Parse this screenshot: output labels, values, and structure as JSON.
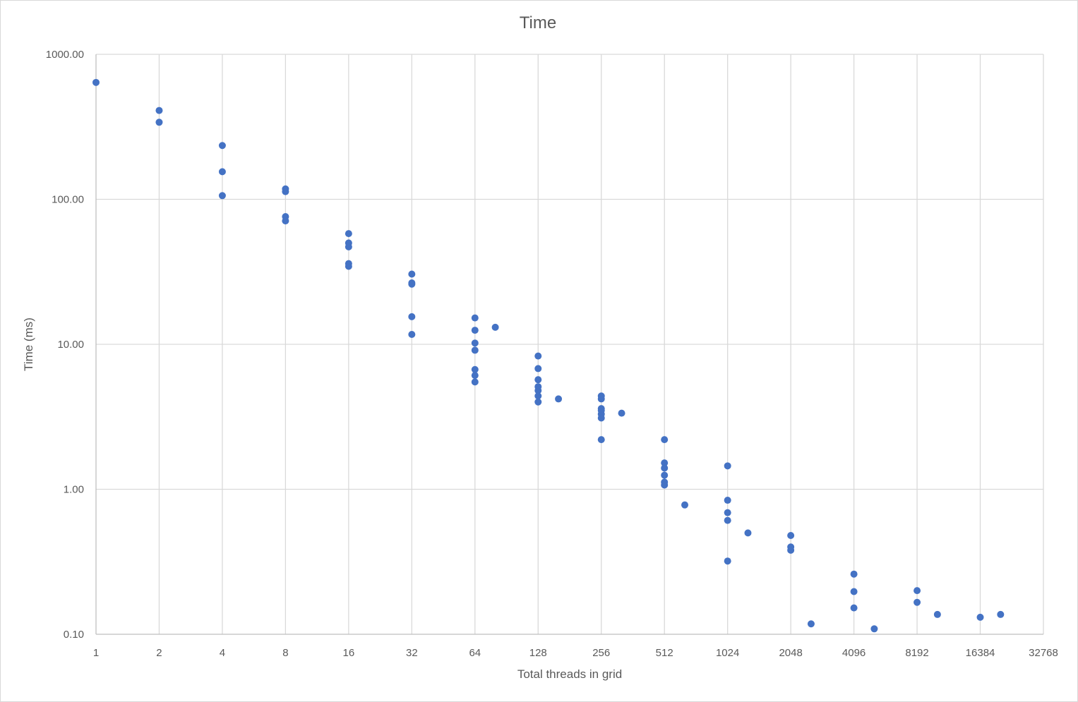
{
  "chart_data": {
    "type": "scatter",
    "title": "Time",
    "xlabel": "Total threads in grid",
    "ylabel": "Time (ms)",
    "x_scale": "log2",
    "y_scale": "log10",
    "xlim": [
      1,
      32768
    ],
    "ylim": [
      0.1,
      1000
    ],
    "grid": true,
    "x_ticks": [
      "1",
      "2",
      "4",
      "8",
      "16",
      "32",
      "64",
      "128",
      "256",
      "512",
      "1024",
      "2048",
      "4096",
      "8192",
      "16384",
      "32768"
    ],
    "y_ticks": [
      "0.10",
      "1.00",
      "10.00",
      "100.00",
      "1000.00"
    ],
    "marker_color": "#4472c4",
    "series": [
      {
        "points": [
          [
            1,
            640
          ],
          [
            2,
            410
          ],
          [
            2,
            340
          ],
          [
            4,
            235
          ],
          [
            4,
            155
          ],
          [
            4,
            106
          ],
          [
            8,
            118
          ],
          [
            8,
            113
          ],
          [
            8,
            76
          ],
          [
            8,
            71
          ],
          [
            16,
            58
          ],
          [
            16,
            50
          ],
          [
            16,
            47
          ],
          [
            16,
            36
          ],
          [
            16,
            34.5
          ],
          [
            32,
            30.5
          ],
          [
            32,
            26.5
          ],
          [
            32,
            26
          ],
          [
            32,
            15.5
          ],
          [
            32,
            11.7
          ],
          [
            64,
            15.2
          ],
          [
            64,
            12.5
          ],
          [
            64,
            10.2
          ],
          [
            64,
            9.1
          ],
          [
            64,
            6.7
          ],
          [
            64,
            6.1
          ],
          [
            64,
            5.5
          ],
          [
            80,
            13.1
          ],
          [
            128,
            8.3
          ],
          [
            128,
            6.8
          ],
          [
            128,
            5.7
          ],
          [
            128,
            5.1
          ],
          [
            128,
            4.8
          ],
          [
            128,
            4.4
          ],
          [
            128,
            4.0
          ],
          [
            160,
            4.2
          ],
          [
            256,
            4.4
          ],
          [
            256,
            4.2
          ],
          [
            256,
            3.6
          ],
          [
            256,
            3.5
          ],
          [
            256,
            3.3
          ],
          [
            256,
            3.1
          ],
          [
            256,
            2.2
          ],
          [
            320,
            3.35
          ],
          [
            512,
            2.2
          ],
          [
            512,
            1.52
          ],
          [
            512,
            1.4
          ],
          [
            512,
            1.25
          ],
          [
            512,
            1.12
          ],
          [
            512,
            1.07
          ],
          [
            640,
            0.78
          ],
          [
            1024,
            1.45
          ],
          [
            1024,
            0.84
          ],
          [
            1024,
            0.69
          ],
          [
            1024,
            0.61
          ],
          [
            1024,
            0.32
          ],
          [
            1280,
            0.5
          ],
          [
            2048,
            0.48
          ],
          [
            2048,
            0.4
          ],
          [
            2048,
            0.38
          ],
          [
            2560,
            0.118
          ],
          [
            4096,
            0.26
          ],
          [
            4096,
            0.197
          ],
          [
            4096,
            0.152
          ],
          [
            5120,
            0.109
          ],
          [
            8192,
            0.2
          ],
          [
            8192,
            0.166
          ],
          [
            10240,
            0.137
          ],
          [
            16384,
            0.131
          ],
          [
            20480,
            0.137
          ]
        ]
      }
    ]
  }
}
